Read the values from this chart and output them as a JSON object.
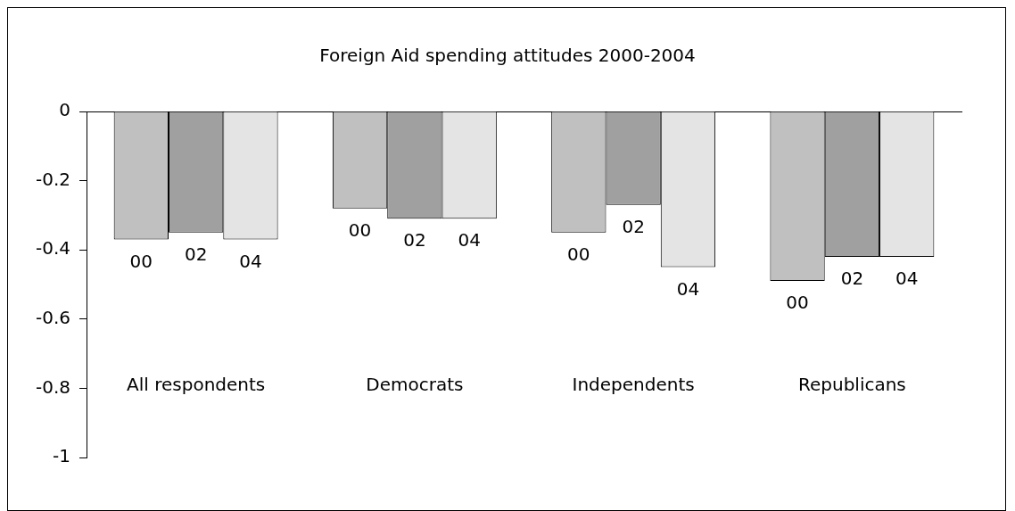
{
  "chart_data": {
    "type": "bar",
    "title": "Foreign Aid spending attitudes 2000-2004",
    "categories": [
      "All respondents",
      "Democrats",
      "Independents",
      "Republicans"
    ],
    "series": [
      {
        "name": "00",
        "color": "#c0c0c0",
        "values": [
          -0.37,
          -0.28,
          -0.35,
          -0.49
        ]
      },
      {
        "name": "02",
        "color": "#a0a0a0",
        "values": [
          -0.35,
          -0.31,
          -0.27,
          -0.42
        ]
      },
      {
        "name": "04",
        "color": "#e4e4e4",
        "values": [
          -0.37,
          -0.31,
          -0.45,
          -0.42
        ]
      }
    ],
    "ylim": [
      -1,
      0
    ],
    "yticks": [
      -1,
      -0.8,
      -0.6,
      -0.4,
      -0.2,
      0
    ],
    "grid": false,
    "legend": false
  }
}
